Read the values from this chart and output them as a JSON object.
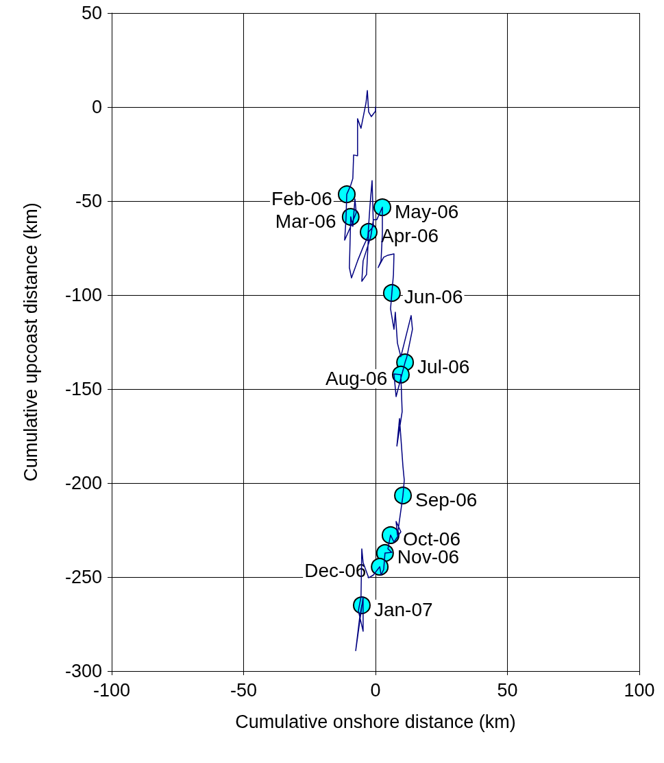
{
  "chart_data": {
    "type": "line",
    "xlabel": "Cumulative onshore distance (km)",
    "ylabel": "Cumulative upcoast distance (km)",
    "xlim": [
      -100,
      100
    ],
    "xticks": [
      -100,
      -50,
      0,
      50,
      100
    ],
    "ylim": [
      -300,
      50
    ],
    "yticks": [
      -300,
      -250,
      -200,
      -150,
      -100,
      -50,
      0,
      50
    ],
    "grid": true,
    "series": [
      {
        "color": "#000080",
        "marker": "none",
        "line_style": "solid",
        "x": [
          0,
          0,
          -1.6,
          -2.6,
          -3.1,
          -3.6,
          -5.5,
          -6.8,
          -6.8,
          -8.3,
          -8.6,
          -9.4,
          -10.9,
          -11.2,
          -11.7,
          -9.4,
          -7.3,
          -7.8,
          -8.6,
          -9.4,
          -9.9,
          -9.1,
          -6.8,
          -4.7,
          -2.9,
          -2.1,
          -1.3,
          -0.8,
          -2.6,
          -3.4,
          -5.2,
          -4.7,
          -1.8,
          -0.8,
          0.5,
          2.6,
          2.6,
          2.1,
          1.0,
          3.1,
          4.7,
          7.0,
          6.8,
          6.2,
          5.7,
          7.0,
          7.5,
          8.3,
          9.6,
          13.5,
          14.0,
          11.9,
          11.2,
          7.8,
          7.0,
          9.6,
          10.1,
          8.1,
          9.1,
          10.4,
          10.9,
          10.4,
          8.3,
          7.8,
          9.6,
          7.0,
          5.7,
          4.7,
          6.2,
          3.6,
          3.1,
          2.1,
          1.6,
          -0.8,
          -2.6,
          -4.7,
          -5.2,
          -5.5,
          -6.5,
          -4.7,
          -4.7,
          -7.5,
          -6.0,
          -5.2
        ],
        "values": [
          0,
          -2.2,
          -5.1,
          -2.6,
          8.8,
          2.2,
          -11.3,
          -6.2,
          -25.9,
          -25.5,
          -38.0,
          -41.6,
          -46.4,
          -59.9,
          -70.8,
          -63.5,
          -56.2,
          -48.9,
          -63.5,
          -58.4,
          -85.4,
          -90.9,
          -81.8,
          -74.5,
          -69.0,
          -52.6,
          -39.1,
          -63.5,
          -66.4,
          -89.1,
          -92.7,
          -81.8,
          -69.0,
          -59.9,
          -59.9,
          -53.3,
          -67.2,
          -81.8,
          -85.4,
          -79.9,
          -78.8,
          -78.1,
          -89.1,
          -98.9,
          -107.3,
          -118.2,
          -109.1,
          -125.5,
          -132.8,
          -110.9,
          -118.2,
          -132.8,
          -135.8,
          -154.0,
          -142.0,
          -142.3,
          -162.0,
          -180.3,
          -165.7,
          -191.2,
          -198.5,
          -206.6,
          -227.7,
          -220.4,
          -225.9,
          -231.4,
          -227.7,
          -235.0,
          -236.9,
          -237.2,
          -246.0,
          -248.9,
          -244.5,
          -248.9,
          -250.4,
          -242.3,
          -235.0,
          -260.6,
          -267.9,
          -278.8,
          -260.6,
          -289.1,
          -271.5,
          -265.0
        ]
      },
      {
        "type": "scatter",
        "color": "#00ffff",
        "marker": "circle",
        "x": [
          -10.9,
          -9.4,
          -2.6,
          2.6,
          6.2,
          11.2,
          9.6,
          10.4,
          5.7,
          3.6,
          1.6,
          -5.2
        ],
        "values": [
          -46.4,
          -58.4,
          -66.4,
          -53.3,
          -98.9,
          -135.8,
          -142.3,
          -206.6,
          -227.7,
          -237.2,
          -244.5,
          -265.0
        ]
      }
    ],
    "annotations": [
      {
        "text": "Feb-06",
        "x": -10.9,
        "y": -46.4
      },
      {
        "text": "Mar-06",
        "x": -9.4,
        "y": -58.4
      },
      {
        "text": "Apr-06",
        "x": -2.6,
        "y": -66.4
      },
      {
        "text": "May-06",
        "x": 2.6,
        "y": -53.3
      },
      {
        "text": "Jun-06",
        "x": 6.2,
        "y": -98.9
      },
      {
        "text": "Jul-06",
        "x": 11.2,
        "y": -135.8
      },
      {
        "text": "Aug-06",
        "x": 9.6,
        "y": -142.3
      },
      {
        "text": "Sep-06",
        "x": 10.4,
        "y": -206.6
      },
      {
        "text": "Oct-06",
        "x": 5.7,
        "y": -227.7
      },
      {
        "text": "Nov-06",
        "x": 3.6,
        "y": -237.2
      },
      {
        "text": "Dec-06",
        "x": 1.6,
        "y": -244.5
      },
      {
        "text": "Jan-07",
        "x": -5.2,
        "y": -265.0
      }
    ]
  }
}
